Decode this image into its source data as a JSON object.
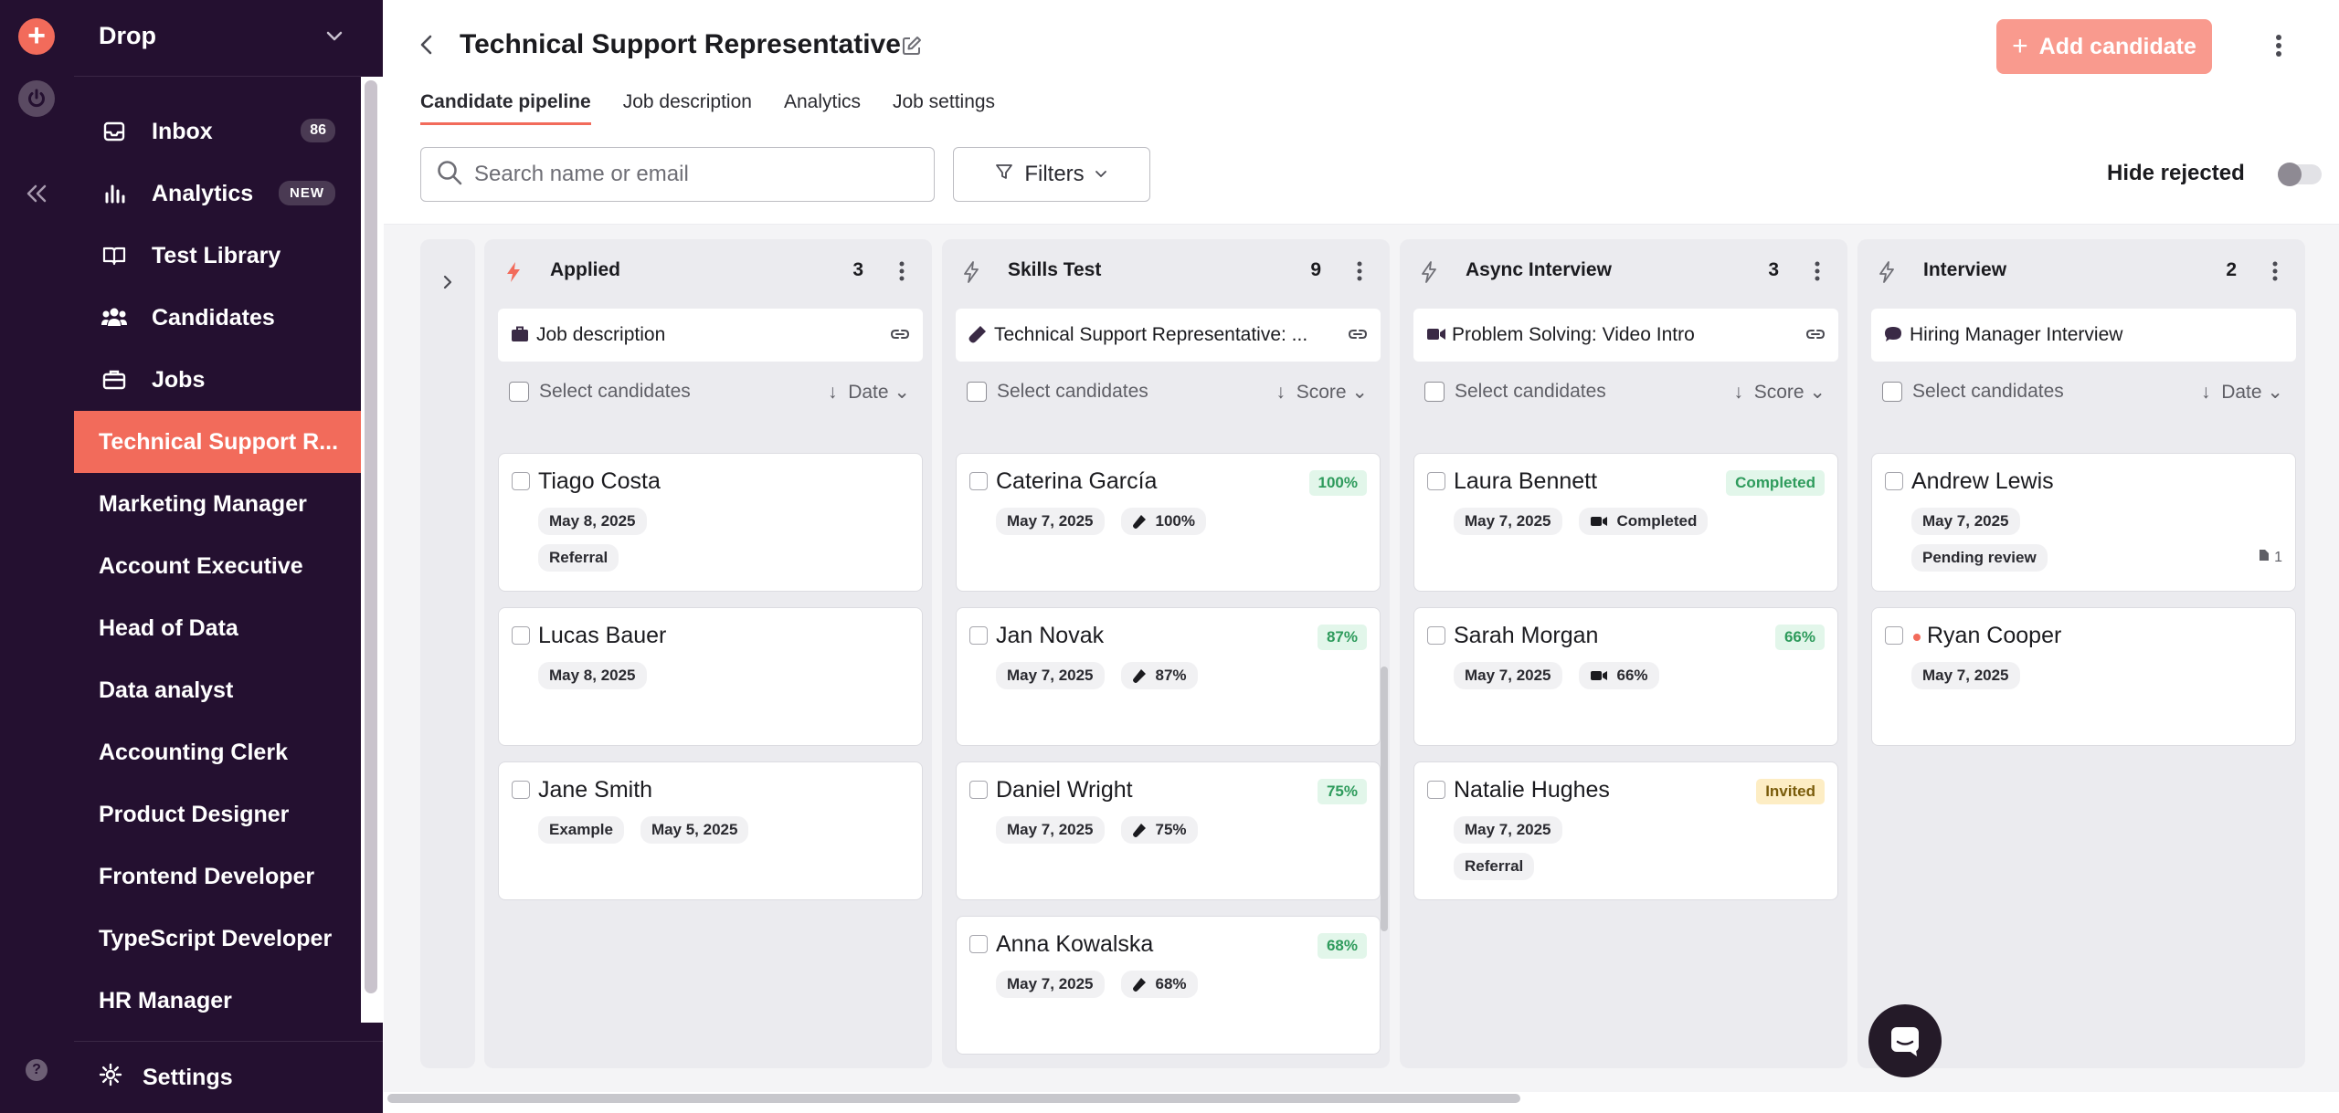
{
  "workspace": {
    "name": "Drop"
  },
  "sidebar": {
    "nav": [
      {
        "label": "Inbox",
        "badge": "86",
        "icon": "inbox-icon"
      },
      {
        "label": "Analytics",
        "tag": "NEW",
        "icon": "bar-chart-icon"
      },
      {
        "label": "Test Library",
        "icon": "book-icon"
      },
      {
        "label": "Candidates",
        "icon": "users-icon"
      },
      {
        "label": "Jobs",
        "icon": "briefcase-icon"
      }
    ],
    "jobs": [
      "Technical Support R...",
      "Marketing Manager",
      "Account Executive",
      "Head of Data",
      "Data analyst",
      "Accounting Clerk",
      "Product Designer",
      "Frontend Developer",
      "TypeScript Developer",
      "HR Manager"
    ],
    "settings": "Settings",
    "help": "?"
  },
  "header": {
    "title": "Technical Support Representative",
    "add_candidate": "Add candidate"
  },
  "tabs": [
    "Candidate pipeline",
    "Job description",
    "Analytics",
    "Job settings"
  ],
  "toolbar": {
    "search_placeholder": "Search name or email",
    "filters": "Filters",
    "hide_rejected": "Hide rejected"
  },
  "columns": [
    {
      "name": "Applied",
      "count": "3",
      "stage": "Job description",
      "stage_icon": "briefcase-icon",
      "select": "Select candidates",
      "sort": "Date",
      "cards": [
        {
          "name": "Tiago Costa",
          "pills": [
            "May 8, 2025"
          ],
          "tags": [
            "Referral"
          ]
        },
        {
          "name": "Lucas Bauer",
          "pills": [
            "May 8, 2025"
          ],
          "tags": []
        },
        {
          "name": "Jane Smith",
          "pills": [
            "Example",
            "May 5, 2025"
          ],
          "tags": []
        }
      ]
    },
    {
      "name": "Skills Test",
      "count": "9",
      "stage": "Technical Support Representative: ...",
      "stage_icon": "test-tube-icon",
      "select": "Select candidates",
      "sort": "Score",
      "cards": [
        {
          "name": "Caterina García",
          "score": "100%",
          "pills": [
            "May 7, 2025",
            "100%"
          ]
        },
        {
          "name": "Jan Novak",
          "score": "87%",
          "pills": [
            "May 7, 2025",
            "87%"
          ]
        },
        {
          "name": "Daniel Wright",
          "score": "75%",
          "pills": [
            "May 7, 2025",
            "75%"
          ]
        },
        {
          "name": "Anna Kowalska",
          "score": "68%",
          "pills": [
            "May 7, 2025",
            "68%"
          ]
        }
      ]
    },
    {
      "name": "Async Interview",
      "count": "3",
      "stage": "Problem Solving: Video Intro",
      "stage_icon": "video-icon",
      "select": "Select candidates",
      "sort": "Score",
      "cards": [
        {
          "name": "Laura Bennett",
          "score": "Completed",
          "pills": [
            "May 7, 2025",
            "Completed"
          ]
        },
        {
          "name": "Sarah Morgan",
          "score": "66%",
          "pills": [
            "May 7, 2025",
            "66%"
          ]
        },
        {
          "name": "Natalie Hughes",
          "score": "Invited",
          "pills": [
            "May 7, 2025"
          ],
          "tags": [
            "Referral"
          ]
        }
      ]
    },
    {
      "name": "Interview",
      "count": "2",
      "stage": "Hiring Manager Interview",
      "stage_icon": "chat-icon",
      "select": "Select candidates",
      "sort": "Date",
      "cards": [
        {
          "name": "Andrew Lewis",
          "pills": [
            "May 7, 2025"
          ],
          "tags": [
            "Pending review"
          ],
          "attachments": "1"
        },
        {
          "name": "Ryan Cooper",
          "pills": [
            "May 7, 2025"
          ]
        }
      ]
    }
  ],
  "colors": {
    "accent": "#f26b5b",
    "sidebar": "#241030",
    "score_green": "#2e9b5c"
  }
}
